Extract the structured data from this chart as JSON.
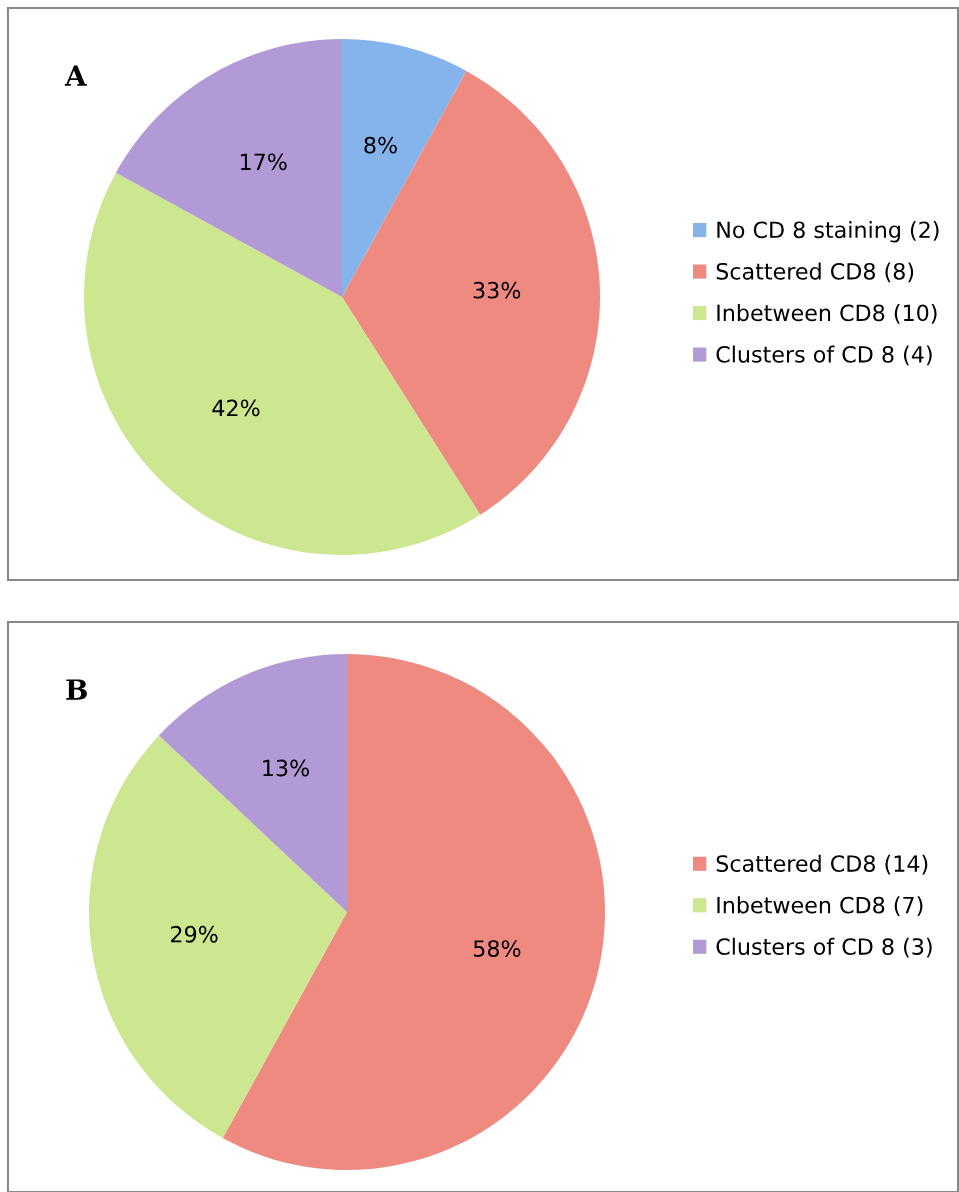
{
  "chart_data": [
    {
      "type": "pie",
      "title": "A",
      "categories": [
        "No CD 8 staining (2)",
        "Scattered CD8 (8)",
        "Inbetween CD8 (10)",
        "Clusters of CD 8 (4)"
      ],
      "values": [
        8,
        33,
        42,
        17
      ],
      "colors": [
        "#85b4ec",
        "#ee8a80",
        "#cde690",
        "#b29ad6"
      ],
      "value_labels": [
        "8%",
        "33%",
        "42%",
        "17%"
      ],
      "legend": "right"
    },
    {
      "type": "pie",
      "title": "B",
      "categories": [
        "Scattered CD8 (14)",
        "Inbetween CD8 (7)",
        "Clusters of CD 8 (3)"
      ],
      "values": [
        58,
        29,
        13
      ],
      "colors": [
        "#ee8a80",
        "#cde690",
        "#b29ad6"
      ],
      "value_labels": [
        "58%",
        "29%",
        "13%"
      ],
      "legend": "right"
    }
  ]
}
